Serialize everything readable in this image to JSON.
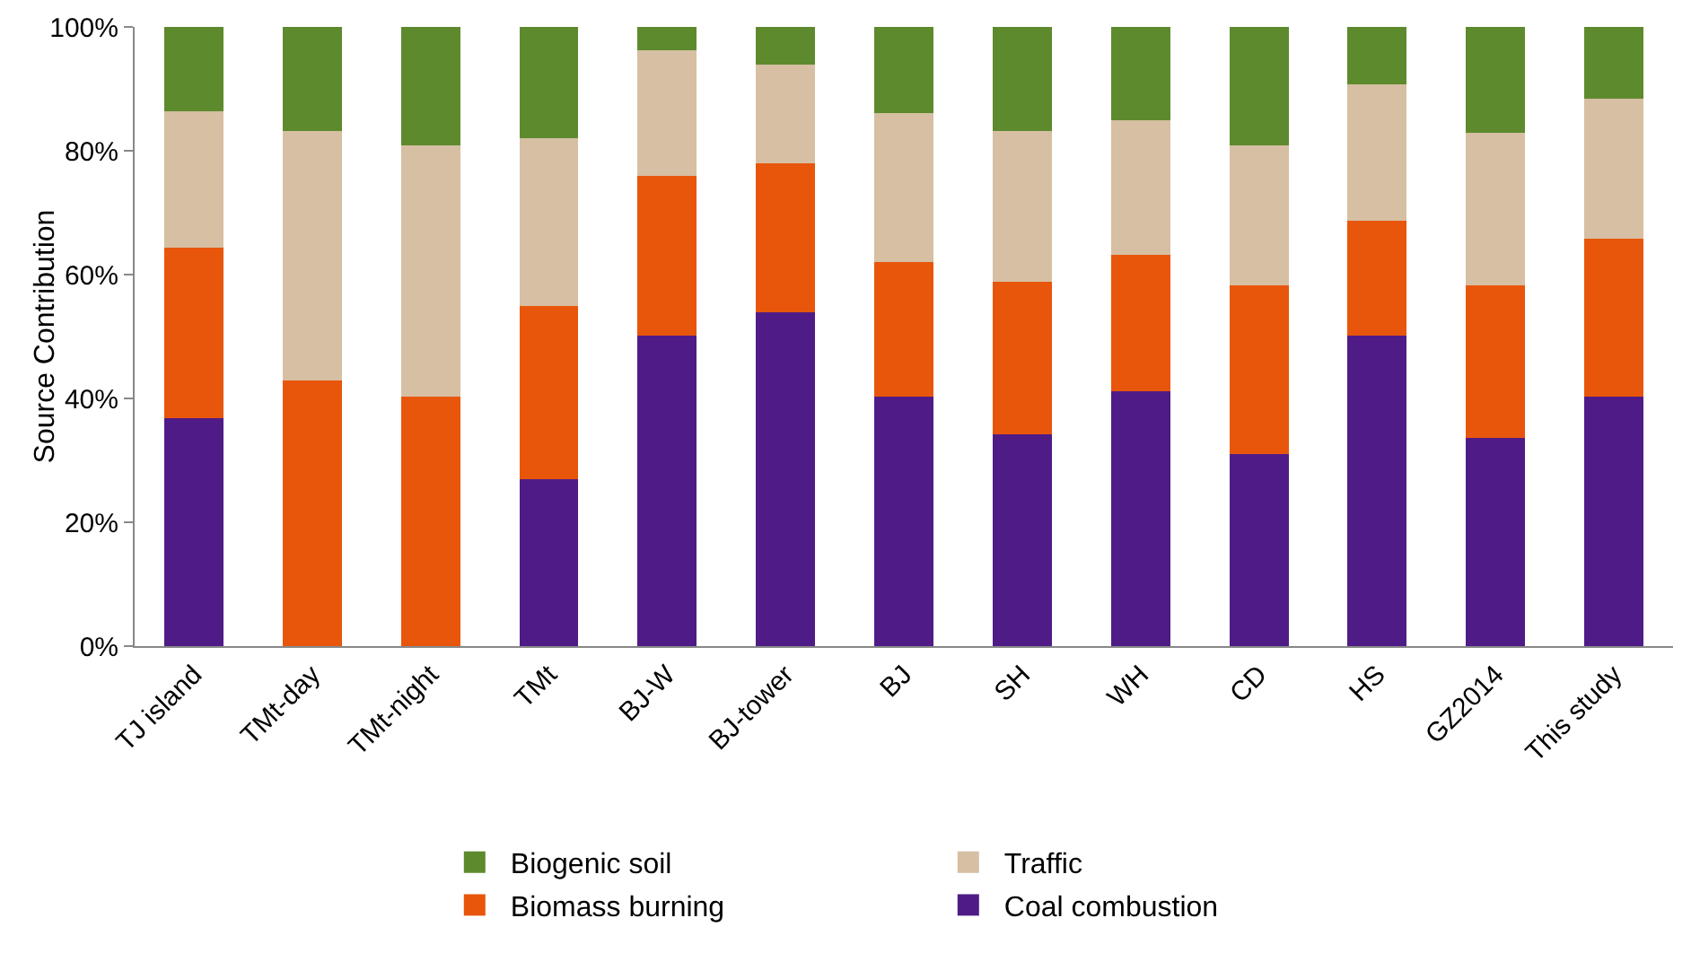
{
  "chart_data": {
    "type": "bar",
    "stacked": true,
    "ylabel": "Source Contribution",
    "categories": [
      "TJ island",
      "TMt-day",
      "TMt-night",
      "TMt",
      "BJ-W",
      "BJ-tower",
      "BJ",
      "SH",
      "WH",
      "CD",
      "HS",
      "GZ2014",
      "This study"
    ],
    "series": [
      {
        "name": "Coal combustion",
        "color": "#4f1c87",
        "values": [
          36.8,
          0,
          0,
          27,
          50.1,
          53.9,
          40.3,
          34.2,
          41.2,
          31,
          50.1,
          33.6,
          40.3
        ]
      },
      {
        "name": "Biomass burning",
        "color": "#e8560c",
        "values": [
          27.5,
          42.9,
          40.3,
          28,
          25.8,
          24.1,
          21.7,
          24.6,
          22,
          27.3,
          18.6,
          24.7,
          25.5
        ]
      },
      {
        "name": "Traffic",
        "color": "#d6bfa2",
        "values": [
          22.1,
          40.3,
          40.6,
          27,
          20.3,
          15.9,
          24.1,
          24.4,
          21.7,
          22.6,
          22,
          24.6,
          22.6
        ]
      },
      {
        "name": "Biogenic soil",
        "color": "#5e8a2e",
        "values": [
          13.6,
          16.8,
          19.1,
          18,
          3.8,
          6.1,
          13.9,
          16.8,
          15.1,
          19.1,
          9.3,
          17.1,
          11.6
        ]
      }
    ],
    "ylim": [
      0,
      100
    ],
    "yticks": [
      {
        "value": 0,
        "label": "0%"
      },
      {
        "value": 20,
        "label": "20%"
      },
      {
        "value": 40,
        "label": "40%"
      },
      {
        "value": 60,
        "label": "60%"
      },
      {
        "value": 80,
        "label": "80%"
      },
      {
        "value": 100,
        "label": "100%"
      }
    ],
    "grid": false,
    "legend": "bottom"
  }
}
